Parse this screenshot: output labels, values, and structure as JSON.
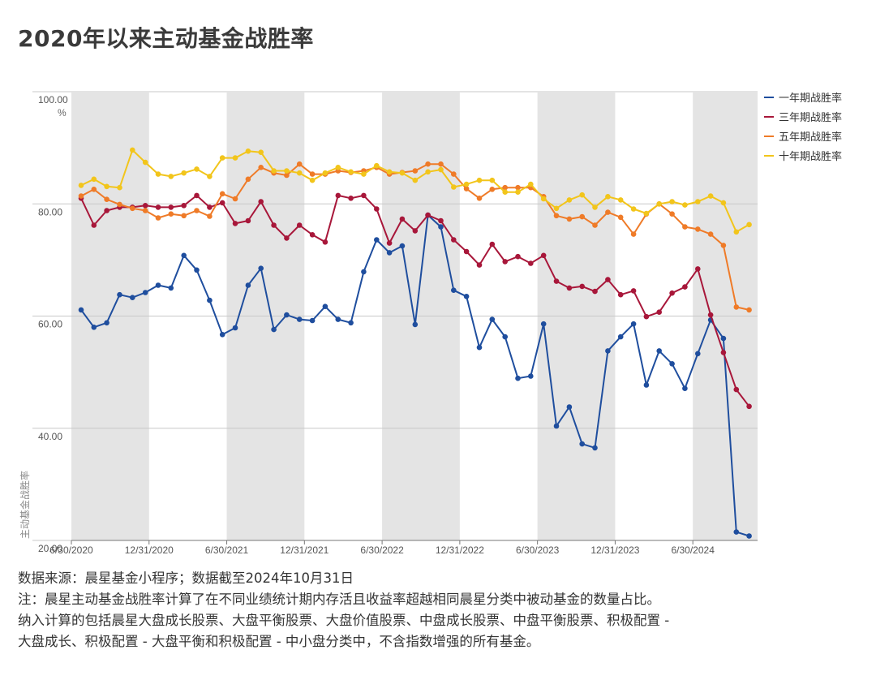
{
  "title": "2020年以来主动基金战胜率",
  "footer": {
    "source": "数据来源：晨星基金小程序；数据截至2024年10月31日",
    "note_line1": "注：晨星主动基金战胜率计算了在不同业绩统计期内存活且收益率超越相同晨星分类中被动基金的数量占比。",
    "note_line2": "纳入计算的包括晨星大盘成长股票、大盘平衡股票、大盘价值股票、中盘成长股票、中盘平衡股票、积极配置 -",
    "note_line3": "大盘成长、积极配置 - 大盘平衡和积极配置 - 中小盘分类中，不含指数增强的所有基金。"
  },
  "chart_data": {
    "type": "line",
    "title": "2020年以来主动基金战胜率",
    "ylabel": "主动基金战胜率",
    "yunit": "%",
    "ylim": [
      20,
      100
    ],
    "yticks": [
      "100.00",
      "80.00",
      "60.00",
      "40.00",
      "20.00"
    ],
    "ytick_values": [
      100,
      80,
      60,
      40,
      20
    ],
    "xticks": [
      "6/30/2020",
      "12/31/2020",
      "6/30/2021",
      "12/31/2021",
      "6/30/2022",
      "12/31/2022",
      "6/30/2023",
      "12/31/2023",
      "6/30/2024"
    ],
    "x_range_months": 53,
    "x_tick_month_offsets": [
      0,
      6,
      12,
      18,
      24,
      30,
      36,
      42,
      48
    ],
    "shaded_bands_months": [
      [
        0,
        6
      ],
      [
        12,
        18
      ],
      [
        24,
        30
      ],
      [
        36,
        42
      ],
      [
        48,
        53
      ]
    ],
    "grid": "horizontal",
    "legend_position": "right",
    "x_start_month_offset": 0,
    "series": [
      {
        "name": "一年期战胜率",
        "color": "#1f4e9e",
        "values": [
          61.1,
          58.0,
          58.8,
          63.8,
          63.3,
          64.2,
          65.5,
          65.0,
          70.8,
          68.2,
          62.8,
          56.7,
          57.9,
          65.5,
          68.5,
          57.6,
          60.2,
          59.4,
          59.2,
          61.7,
          59.4,
          58.8,
          67.9,
          73.6,
          71.3,
          72.5,
          58.5,
          78.0,
          75.9,
          64.6,
          63.5,
          54.4,
          59.4,
          56.3,
          48.9,
          49.3,
          58.6,
          40.4,
          43.8,
          37.2,
          36.5,
          53.8,
          56.3,
          58.6,
          47.7,
          53.8,
          51.5,
          47.1,
          53.3,
          59.3,
          56.0,
          21.5,
          20.8
        ]
      },
      {
        "name": "三年期战胜率",
        "color": "#a8173a",
        "values": [
          81.0,
          76.2,
          78.8,
          79.4,
          79.4,
          79.7,
          79.4,
          79.4,
          79.7,
          81.5,
          79.4,
          80.2,
          76.5,
          77.0,
          80.4,
          76.2,
          73.9,
          76.2,
          74.5,
          73.2,
          81.5,
          81.0,
          81.5,
          79.1,
          73.0,
          77.3,
          75.2,
          78.0,
          77.0,
          73.6,
          71.5,
          69.1,
          72.8,
          69.7,
          70.6,
          69.4,
          70.8,
          66.2,
          65.0,
          65.3,
          64.4,
          66.5,
          63.8,
          64.5,
          59.9,
          60.7,
          64.1,
          65.2,
          68.4,
          60.2,
          53.5,
          46.9,
          43.9
        ]
      },
      {
        "name": "五年期战胜率",
        "color": "#ef7b28",
        "values": [
          81.4,
          82.6,
          80.8,
          79.9,
          79.2,
          78.8,
          77.5,
          78.2,
          77.9,
          78.8,
          77.8,
          81.8,
          80.9,
          84.4,
          86.5,
          85.5,
          85.1,
          87.1,
          85.3,
          85.3,
          85.9,
          85.6,
          85.9,
          86.5,
          85.3,
          85.6,
          85.9,
          87.1,
          87.1,
          85.3,
          82.7,
          81.0,
          82.6,
          82.9,
          82.9,
          82.9,
          81.3,
          77.9,
          77.3,
          77.7,
          76.2,
          78.5,
          77.6,
          74.6,
          78.2,
          80.0,
          78.2,
          75.9,
          75.5,
          74.6,
          72.6,
          61.6,
          61.1
        ]
      },
      {
        "name": "十年期战胜率",
        "color": "#f2c51b",
        "values": [
          83.3,
          84.4,
          83.1,
          82.9,
          89.6,
          87.4,
          85.3,
          84.9,
          85.5,
          86.2,
          84.9,
          88.2,
          88.2,
          89.4,
          89.2,
          85.9,
          85.9,
          85.5,
          84.2,
          85.5,
          86.5,
          85.7,
          85.3,
          86.8,
          85.7,
          85.5,
          84.2,
          85.7,
          86.1,
          83.0,
          83.5,
          84.2,
          84.2,
          82.1,
          82.1,
          83.5,
          80.9,
          79.2,
          80.7,
          81.6,
          79.4,
          81.3,
          80.7,
          79.1,
          78.3,
          80.0,
          80.4,
          79.8,
          80.4,
          81.4,
          80.2,
          75.0,
          76.3
        ]
      }
    ]
  }
}
